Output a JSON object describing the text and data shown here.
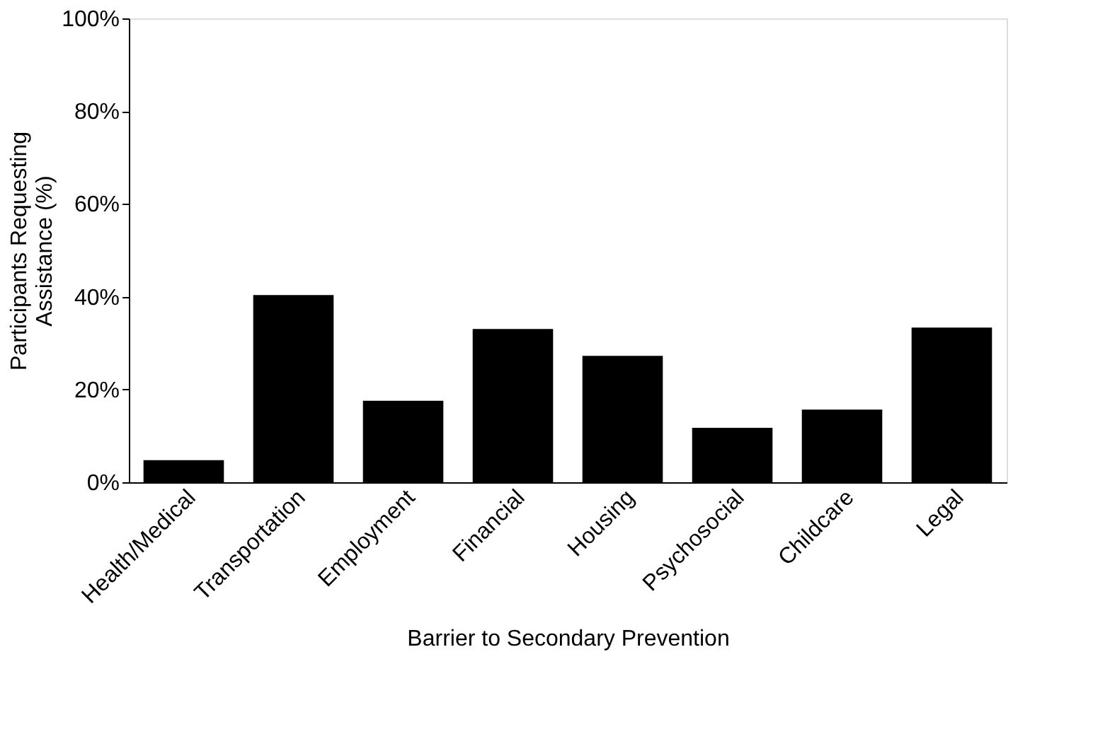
{
  "chart_data": {
    "type": "bar",
    "categories": [
      "Health/Medical",
      "Transportation",
      "Employment",
      "Financial",
      "Housing",
      "Psychosocial",
      "Childcare",
      "Legal"
    ],
    "values": [
      4.6,
      40.2,
      17.4,
      32.9,
      27.1,
      11.6,
      15.5,
      33.2
    ],
    "color": "#000000",
    "xlabel": "Barrier to Secondary Prevention",
    "ylabel": "Participants Requesting Assistance (%)",
    "ylim": [
      0,
      100
    ],
    "yticks": [
      {
        "value": 0,
        "label": "0%"
      },
      {
        "value": 20,
        "label": "20%"
      },
      {
        "value": 40,
        "label": "40%"
      },
      {
        "value": 60,
        "label": "60%"
      },
      {
        "value": 80,
        "label": "80%"
      },
      {
        "value": 100,
        "label": "100%"
      }
    ],
    "grid": false
  }
}
